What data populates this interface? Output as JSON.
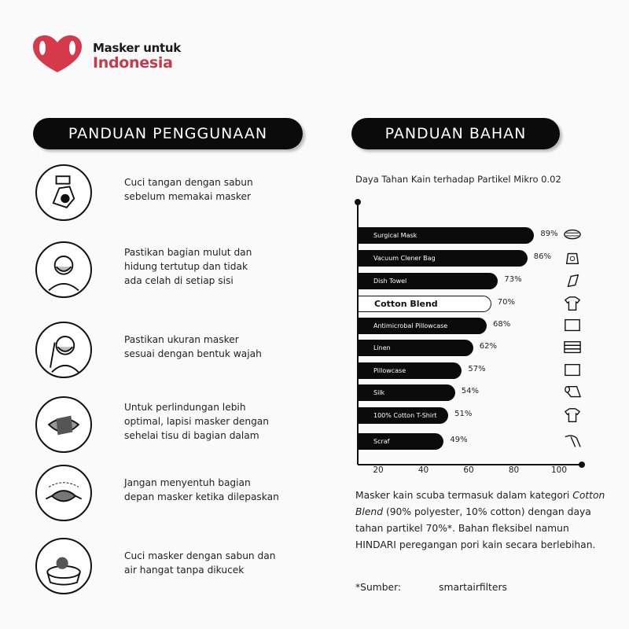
{
  "brand": {
    "line1": "Masker untuk",
    "line2": "Indonesia",
    "color": "#c73a4c"
  },
  "left": {
    "title": "PANDUAN PENGGUNAAN",
    "steps": [
      {
        "icon": "hand-wash-icon",
        "lines": [
          "Cuci tangan dengan sabun",
          "sebelum memakai masker"
        ]
      },
      {
        "icon": "face-mask-cover-icon",
        "lines": [
          "Pastikan bagian mulut dan",
          "hidung tertutup dan tidak",
          "ada celah di setiap sisi"
        ]
      },
      {
        "icon": "face-mask-fit-icon",
        "lines": [
          "Pastikan ukuran masker",
          "sesuai dengan bentuk wajah"
        ]
      },
      {
        "icon": "mask-tissue-icon",
        "lines": [
          "Untuk perlindungan lebih",
          "optimal, lapisi masker dengan",
          "sehelai tisu di bagian dalam"
        ]
      },
      {
        "icon": "mask-remove-icon",
        "lines": [
          "Jangan menyentuh bagian",
          "depan masker ketika dilepaskan"
        ]
      },
      {
        "icon": "mask-wash-basin-icon",
        "lines": [
          "Cuci masker dengan sabun dan",
          "air hangat tanpa dikucek"
        ]
      }
    ]
  },
  "right": {
    "title": "PANDUAN BAHAN",
    "paragraph": {
      "p1": "Masker kain scuba termasuk dalam kategori ",
      "italic": "Cotton Blend",
      "p2": " (90% polyester, 10% cotton) dengan daya tahan partikel 70%*. Bahan fleksibel namun HINDARI peregangan pori kain secara berlebihan."
    },
    "source_label": "*Sumber:",
    "source_value": "smartairfilters"
  },
  "chart_data": {
    "type": "bar",
    "orientation": "horizontal",
    "title": "Daya Tahan Kain terhadap Partikel Mikro 0.02",
    "categories": [
      "Surgical Mask",
      "Vacuum Clener Bag",
      "Dish Towel",
      "Cotton Blend",
      "Antimicrobal Pillowcase",
      "Linen",
      "Pillowcase",
      "Silk",
      "100% Cotton T-Shirt",
      "Scraf"
    ],
    "values": [
      89,
      86,
      73,
      70,
      68,
      62,
      57,
      54,
      51,
      49
    ],
    "value_labels": [
      "89%",
      "86%",
      "73%",
      "70%",
      "68%",
      "62%",
      "57%",
      "54%",
      "51%",
      "49%"
    ],
    "highlight": "Cotton Blend",
    "icons": [
      "surgical-mask-icon",
      "vacuum-bag-icon",
      "dish-towel-icon",
      "t-shirt-icon",
      "pillowcase-icon",
      "linen-stack-icon",
      "pillowcase-icon",
      "silk-roll-icon",
      "t-shirt-icon",
      "scarf-icon"
    ],
    "xticks": [
      "20",
      "40",
      "60",
      "80",
      "100"
    ],
    "xtick_values": [
      20,
      40,
      60,
      80,
      100
    ],
    "grid": false
  }
}
